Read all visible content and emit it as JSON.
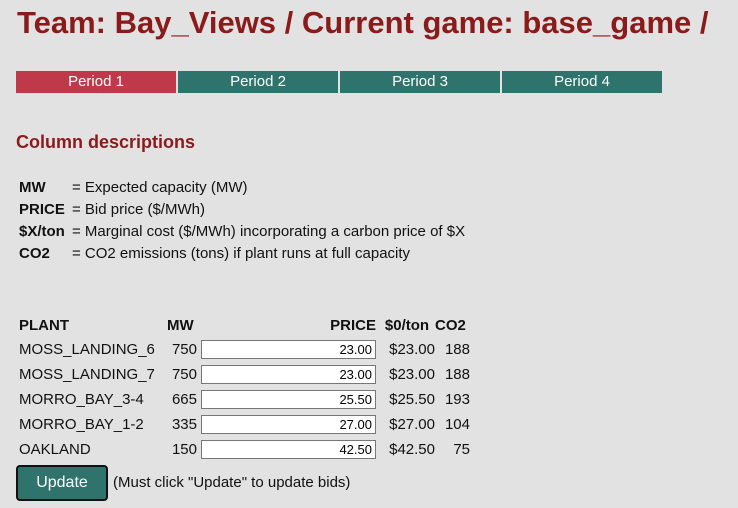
{
  "header": {
    "title": "Team: Bay_Views / Current game: base_game /"
  },
  "tabs": [
    {
      "label": "Period 1",
      "active": true
    },
    {
      "label": "Period 2",
      "active": false
    },
    {
      "label": "Period 3",
      "active": false
    },
    {
      "label": "Period 4",
      "active": false
    }
  ],
  "colors": {
    "title": "#8b1a1a",
    "active_tab": "#c0394b",
    "inactive_tab": "#2e736c",
    "button": "#2e736c",
    "background": "#e2e2e2"
  },
  "column_descriptions": {
    "heading": "Column descriptions",
    "items": [
      {
        "key": "MW",
        "text": "= Expected capacity (MW)"
      },
      {
        "key": "PRICE",
        "text": "= Bid price ($/MWh)"
      },
      {
        "key": "$X/ton",
        "text": "= Marginal cost ($/MWh) incorporating a carbon price of $X"
      },
      {
        "key": "CO2",
        "text": "= CO2 emissions (tons) if plant runs at full capacity"
      }
    ]
  },
  "plants_table": {
    "headers": {
      "plant": "PLANT",
      "mw": "MW",
      "price": "PRICE",
      "cost": "$0/ton",
      "co2": "CO2"
    },
    "rows": [
      {
        "plant": "MOSS_LANDING_6",
        "mw": "750",
        "price": "23.00",
        "cost": "$23.00",
        "co2": "188"
      },
      {
        "plant": "MOSS_LANDING_7",
        "mw": "750",
        "price": "23.00",
        "cost": "$23.00",
        "co2": "188"
      },
      {
        "plant": "MORRO_BAY_3-4",
        "mw": "665",
        "price": "25.50",
        "cost": "$25.50",
        "co2": "193"
      },
      {
        "plant": "MORRO_BAY_1-2",
        "mw": "335",
        "price": "27.00",
        "cost": "$27.00",
        "co2": "104"
      },
      {
        "plant": "OAKLAND",
        "mw": "150",
        "price": "42.50",
        "cost": "$42.50",
        "co2": "75"
      }
    ]
  },
  "update": {
    "button_label": "Update",
    "note": "(Must click \"Update\" to update bids)"
  }
}
